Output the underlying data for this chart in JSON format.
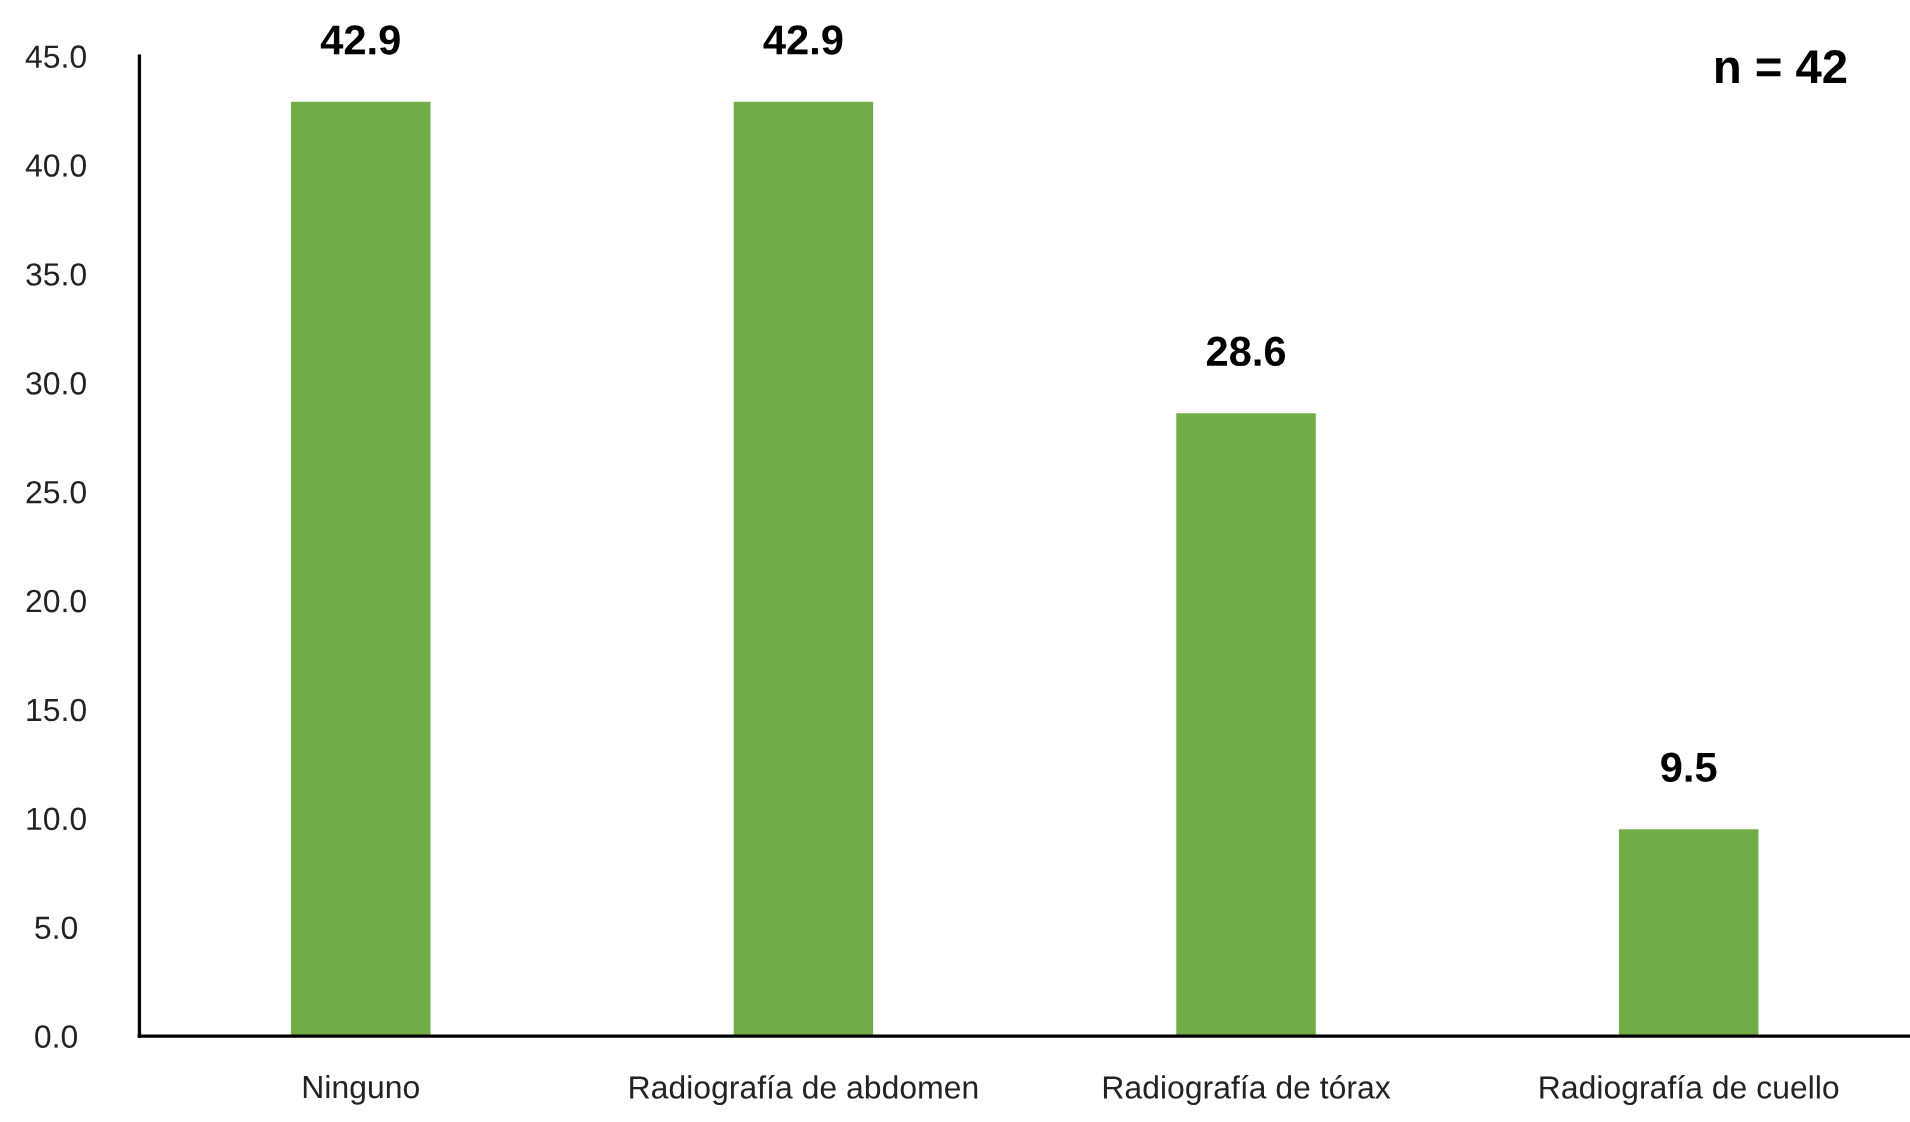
{
  "chart_data": {
    "type": "bar",
    "categories": [
      "Ninguno",
      "Radiografía de abdomen",
      "Radiografía de tórax",
      "Radiografía de cuello"
    ],
    "values": [
      42.9,
      42.9,
      28.6,
      9.5
    ],
    "color": "#70ad47",
    "ylim": [
      0,
      45
    ],
    "yticks": [
      {
        "value": 0,
        "label": "0.0"
      },
      {
        "value": 5,
        "label": "5.0"
      },
      {
        "value": 10,
        "label": "10.0"
      },
      {
        "value": 15,
        "label": "15.0"
      },
      {
        "value": 20,
        "label": "20.0"
      },
      {
        "value": 25,
        "label": "25.0"
      },
      {
        "value": 30,
        "label": "30.0"
      },
      {
        "value": 35,
        "label": "35.0"
      },
      {
        "value": 40,
        "label": "40.0"
      },
      {
        "value": 45,
        "label": "45.0"
      }
    ],
    "data_labels": true,
    "grid": false,
    "legend": false,
    "annotations": [
      "n = 42"
    ]
  }
}
